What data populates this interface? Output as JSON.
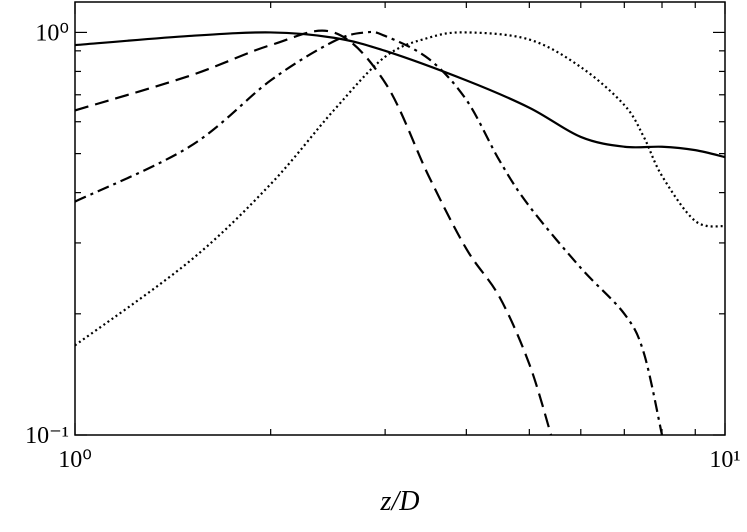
{
  "chart_data": {
    "type": "line",
    "xlabel": "z/D",
    "xscale": "log",
    "yscale": "log",
    "xlim": [
      1,
      10
    ],
    "ylim": [
      0.1,
      1.19
    ],
    "xticks": [
      {
        "value": 1,
        "label": "10⁰"
      },
      {
        "value": 10,
        "label": "10¹"
      }
    ],
    "yticks": [
      {
        "value": 0.1,
        "label": "10⁻¹"
      },
      {
        "value": 1,
        "label": "10⁰"
      }
    ],
    "xminor": [
      2,
      3,
      4,
      5,
      6,
      7,
      8,
      9
    ],
    "yminor": [
      0.2,
      0.3,
      0.4,
      0.5,
      0.6,
      0.7,
      0.8,
      0.9
    ],
    "series": [
      {
        "color": "#000000",
        "style": "solid",
        "x": [
          1,
          1.5,
          2,
          2.5,
          3,
          4,
          5,
          6,
          7,
          8,
          9,
          10
        ],
        "values": [
          0.93,
          0.98,
          1.0,
          0.97,
          0.9,
          0.76,
          0.65,
          0.55,
          0.52,
          0.52,
          0.51,
          0.49
        ]
      },
      {
        "color": "#000000",
        "style": "dashed",
        "x": [
          1,
          1.5,
          2,
          2.5,
          3,
          3.5,
          4,
          4.5,
          5,
          5.4
        ],
        "values": [
          0.64,
          0.78,
          0.93,
          1.0,
          0.75,
          0.44,
          0.29,
          0.22,
          0.15,
          0.1
        ]
      },
      {
        "color": "#000000",
        "style": "dashdot",
        "x": [
          1,
          1.5,
          2,
          2.5,
          2.8,
          3,
          3.5,
          4,
          4.5,
          5,
          6,
          7,
          7.5,
          8
        ],
        "values": [
          0.38,
          0.52,
          0.76,
          0.95,
          1.0,
          0.98,
          0.86,
          0.68,
          0.48,
          0.37,
          0.26,
          0.2,
          0.16,
          0.1
        ]
      },
      {
        "color": "#000000",
        "style": "dotted",
        "x": [
          1,
          1.5,
          2,
          2.5,
          3,
          3.5,
          4,
          5,
          6,
          7,
          7.5,
          8,
          9,
          10
        ],
        "values": [
          0.167,
          0.27,
          0.42,
          0.64,
          0.87,
          0.97,
          1.0,
          0.96,
          0.82,
          0.66,
          0.55,
          0.44,
          0.34,
          0.33
        ]
      }
    ]
  }
}
